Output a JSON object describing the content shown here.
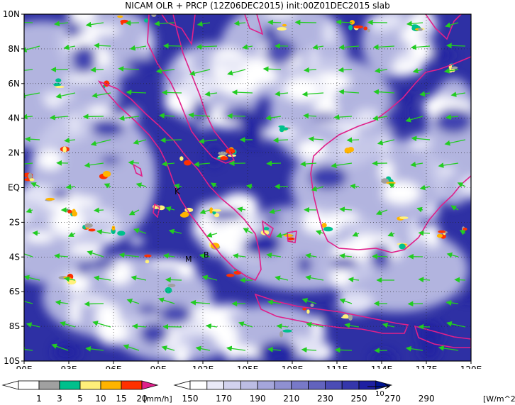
{
  "title": "NICAM OLR + PRCP (12Z06DEC2015) init:00Z01DEC2015 slab",
  "map": {
    "lon_range": [
      90,
      120
    ],
    "lat_range": [
      -10,
      10
    ],
    "lon_ticks": [
      "90E",
      "93E",
      "96E",
      "99E",
      "102E",
      "105E",
      "108E",
      "111E",
      "114E",
      "117E",
      "120E"
    ],
    "lat_ticks": [
      "10N",
      "8N",
      "6N",
      "4N",
      "2N",
      "EQ",
      "2S",
      "4S",
      "6S",
      "8S",
      "10S"
    ],
    "grid": "dotted",
    "place_labels": [
      "K",
      "M",
      "B"
    ],
    "colors": {
      "coast": "#e0208a",
      "vector": "#22cc22",
      "frame": "#000000"
    }
  },
  "prcp_legend": {
    "labels": [
      "1",
      "3",
      "5",
      "10",
      "15",
      "20"
    ],
    "unit": "[mm/h]",
    "colors": [
      "#ffffff",
      "#a0a0a0",
      "#00c08c",
      "#fff07a",
      "#ffb400",
      "#ff3000",
      "#e0208a"
    ]
  },
  "olr_legend": {
    "labels": [
      "150",
      "170",
      "190",
      "210",
      "230",
      "250",
      "270",
      "290"
    ],
    "unit": "[W/m^2]",
    "colors": [
      "#ffffff",
      "#e9e9f7",
      "#d2d2ee",
      "#bcbde4",
      "#a5a6db",
      "#8f90d1",
      "#7879c8",
      "#6263be",
      "#4b4cb5",
      "#3536ab",
      "#1e20a2",
      "#001493"
    ]
  },
  "vector_ref": {
    "label": "10"
  }
}
